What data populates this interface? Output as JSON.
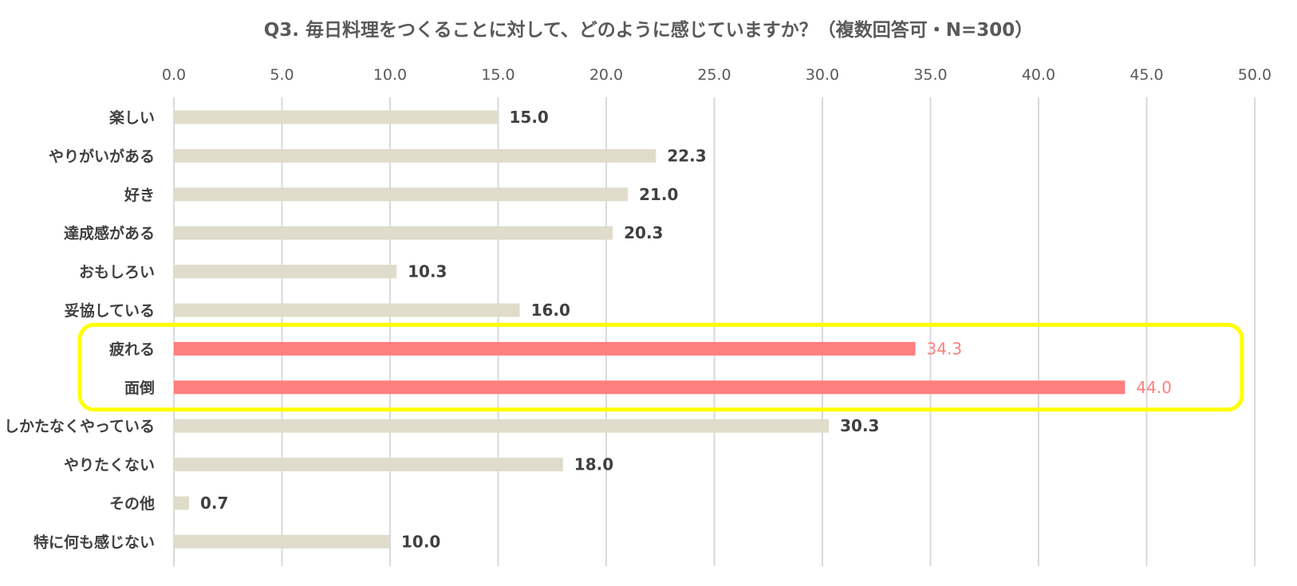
{
  "chart_data": {
    "type": "bar",
    "orientation": "horizontal",
    "title": "Q3. 毎日料理をつくることに対して、どのように感じていますか？（複数回答可・N=300）",
    "categories": [
      "楽しい",
      "やりがいがある",
      "好き",
      "達成感がある",
      "おもしろい",
      "妥協している",
      "疲れる",
      "面倒",
      "しかたなくやっている",
      "やりたくない",
      "その他",
      "特に何も感じない"
    ],
    "values": [
      15.0,
      22.3,
      21.0,
      20.3,
      10.3,
      16.0,
      34.3,
      44.0,
      30.3,
      18.0,
      0.7,
      10.0
    ],
    "value_labels": [
      "15.0",
      "22.3",
      "21.0",
      "20.3",
      "10.3",
      "16.0",
      "34.3",
      "44.0",
      "30.3",
      "18.0",
      "0.7",
      "10.0"
    ],
    "highlighted": [
      "疲れる",
      "面倒"
    ],
    "xlim": [
      0,
      50
    ],
    "x_ticks": [
      "0.0",
      "5.0",
      "10.0",
      "15.0",
      "20.0",
      "25.0",
      "30.0",
      "35.0",
      "40.0",
      "45.0",
      "50.0"
    ],
    "x_axis_position": "top",
    "grid": true,
    "colors": {
      "bar": "#e0dccb",
      "bar_highlight": "#ff7f7f",
      "grid": "#d9d9d9",
      "highlight_box": "#ffff00",
      "label": "#404040"
    }
  }
}
